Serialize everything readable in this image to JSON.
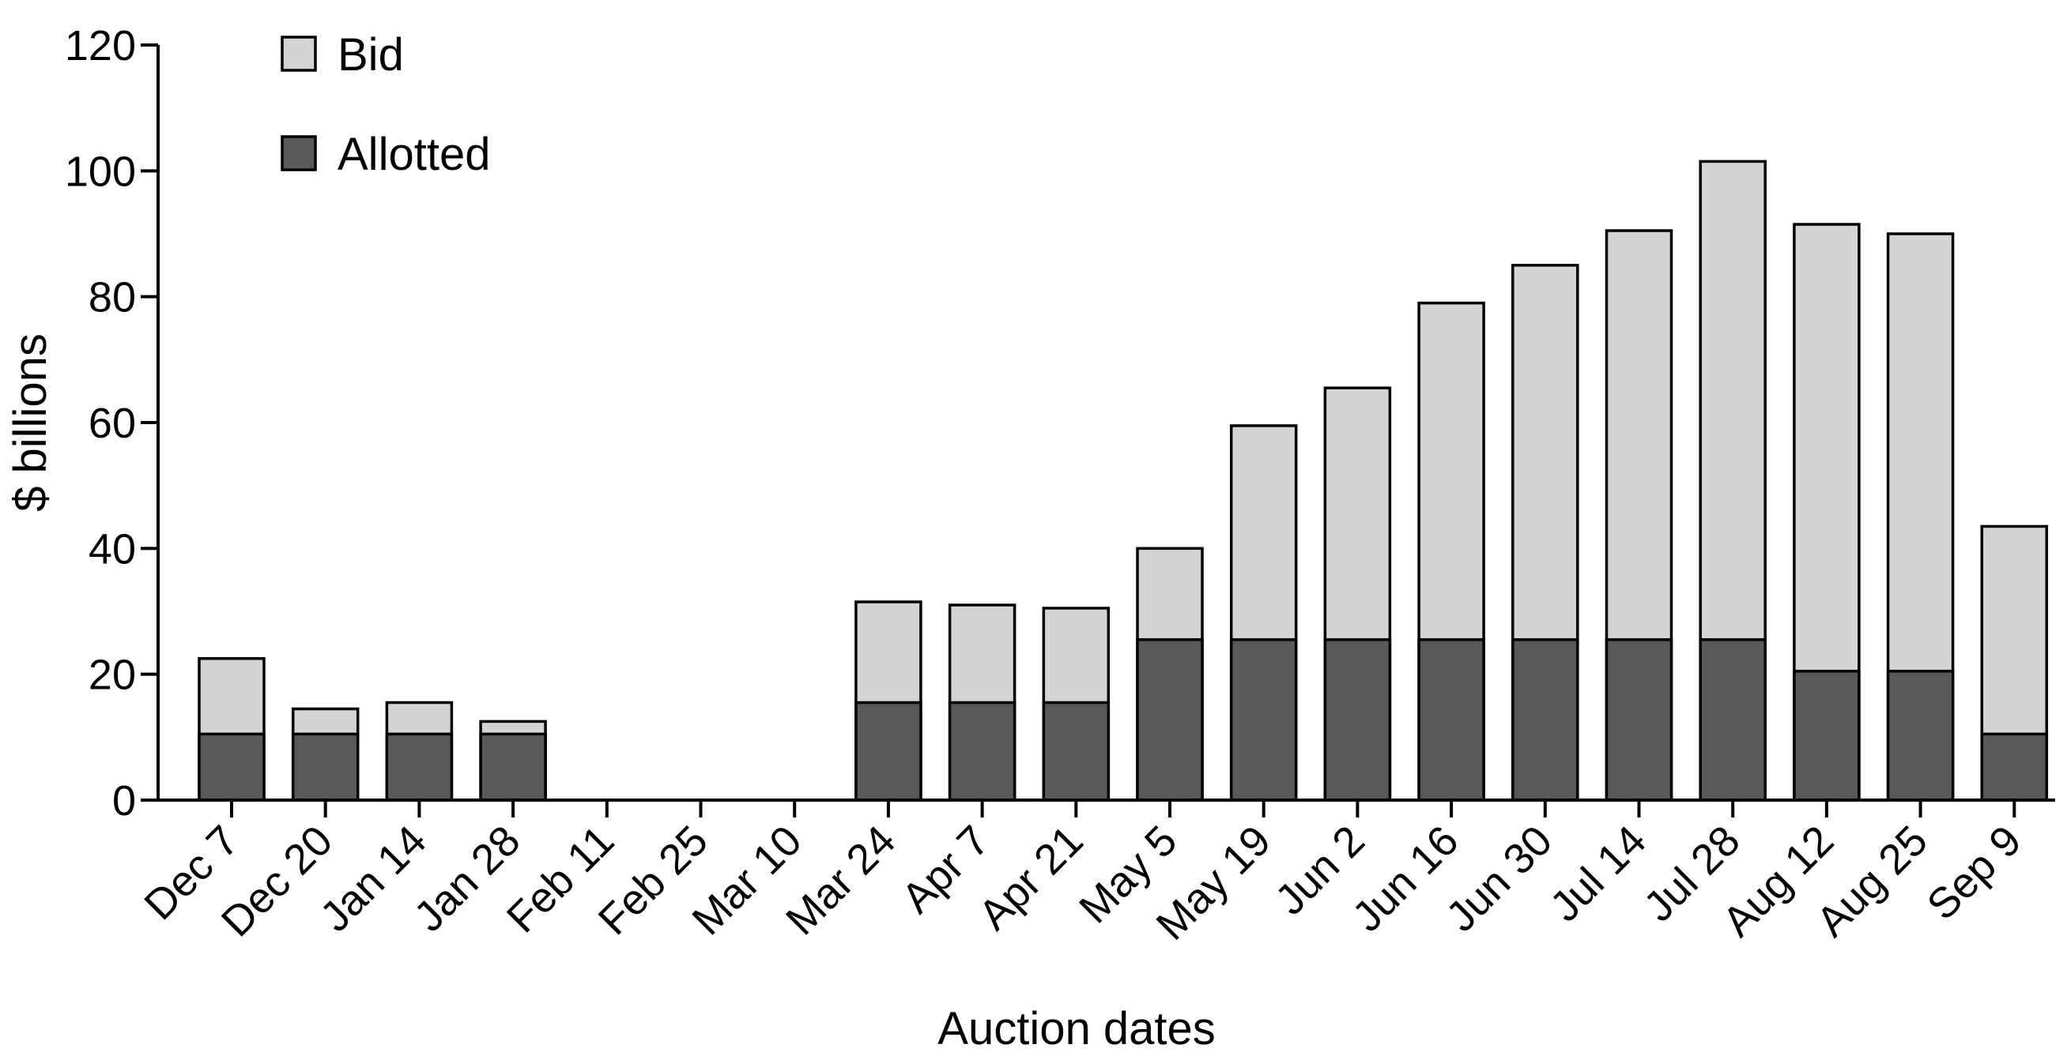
{
  "chart_data": {
    "type": "bar",
    "stacking": "overlay",
    "title": "",
    "xlabel": "Auction dates",
    "ylabel": "$ billions",
    "ylim": [
      0,
      120
    ],
    "yticks": [
      0,
      20,
      40,
      60,
      80,
      100,
      120
    ],
    "grid": false,
    "legend_position": "top-left",
    "categories": [
      "Dec 7",
      "Dec 20",
      "Jan 14",
      "Jan 28",
      "Feb 11",
      "Feb 25",
      "Mar 10",
      "Mar 24",
      "Apr 7",
      "Apr 21",
      "May 5",
      "May 19",
      "Jun 2",
      "Jun 16",
      "Jun 30",
      "Jul 14",
      "Jul 28",
      "Aug 12",
      "Aug 25",
      "Sep 9"
    ],
    "series": [
      {
        "name": "Bid",
        "color": "#d3d4d6",
        "values": [
          22.5,
          14.5,
          15.5,
          12.5,
          0,
          0,
          0,
          31.5,
          31,
          30.5,
          40,
          59.5,
          65.5,
          79,
          85,
          90.5,
          101.5,
          91.5,
          90,
          43.5
        ]
      },
      {
        "name": "Allotted",
        "color": "#58595b",
        "values": [
          10.5,
          10.5,
          10.5,
          10.5,
          0,
          0,
          0,
          15.5,
          15.5,
          15.5,
          25.5,
          25.5,
          25.5,
          25.5,
          25.5,
          25.5,
          25.5,
          20.5,
          20.5,
          10.5
        ]
      }
    ]
  }
}
